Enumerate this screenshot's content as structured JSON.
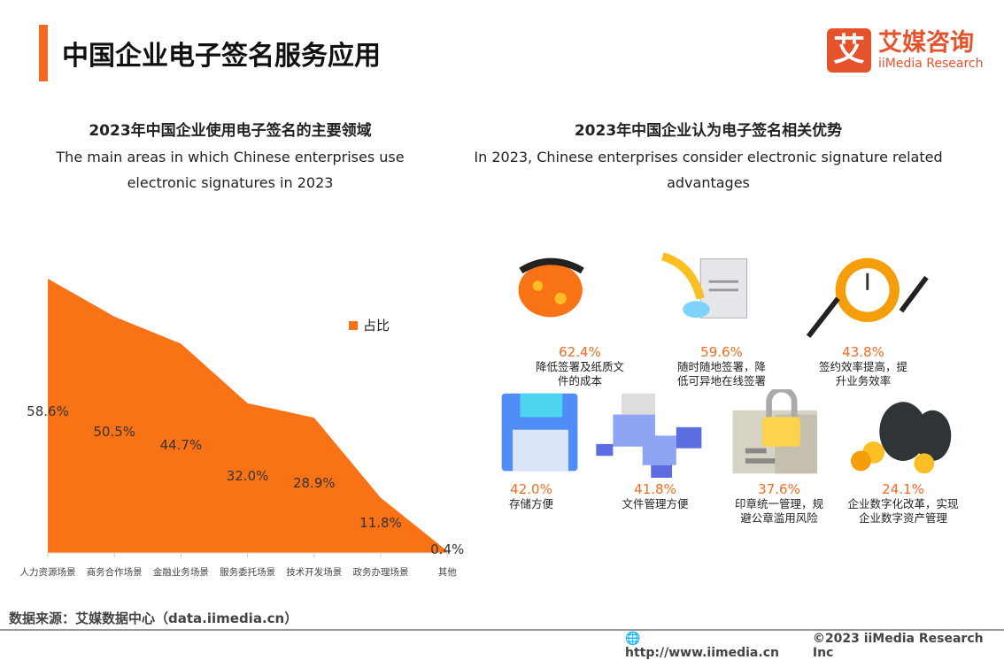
{
  "header": {
    "title": "中国企业电子签名服务应用",
    "logo_icon": "艾",
    "logo_cn": "艾媒咨询",
    "logo_en": "iiMedia Research"
  },
  "chart_data": {
    "type": "area",
    "title": "2023年中国企业使用电子签名的主要领域",
    "subtitle": "The main areas in which Chinese enterprises use electronic signatures in 2023",
    "categories": [
      "人力资源场景",
      "商务合作场景",
      "金融业务场景",
      "服务委托场景",
      "技术开发场景",
      "政务办理场景",
      "其他"
    ],
    "series": [
      {
        "name": "占比",
        "values": [
          58.6,
          50.5,
          44.7,
          32.0,
          28.9,
          11.8,
          0.4
        ],
        "labels": [
          "58.6%",
          "50.5%",
          "44.7%",
          "32.0%",
          "28.9%",
          "11.8%",
          "0.4%"
        ]
      }
    ],
    "color": "#f97316",
    "legend": "right",
    "grid": false
  },
  "advantages": {
    "title": "2023年中国企业认为电子签名相关优势",
    "subtitle": "In 2023, Chinese enterprises consider electronic signature related advantages",
    "items": [
      {
        "pct": "62.4%",
        "label": "降低签署及纸质文件的成本",
        "icon": "money-bag-icon"
      },
      {
        "pct": "59.6%",
        "label": "随时随地签署，降低可异地在线签署",
        "icon": "quill-document-icon"
      },
      {
        "pct": "43.8%",
        "label": "签约效率提高，提升业务效率",
        "icon": "gear-clock-icon"
      },
      {
        "pct": "42.0%",
        "label": "存储方便",
        "icon": "floppy-disk-icon"
      },
      {
        "pct": "41.8%",
        "label": "文件管理方便",
        "icon": "folders-icon"
      },
      {
        "pct": "37.6%",
        "label": "印章统一管理，规避公章滥用风险",
        "icon": "lock-folder-icon"
      },
      {
        "pct": "24.1%",
        "label": "企业数字化改革，实现企业数字资产管理",
        "icon": "money-bags-coins-icon"
      }
    ]
  },
  "footer": {
    "source": "数据来源：艾媒数据中心（data.iimedia.cn）",
    "url": "http://www.iimedia.cn",
    "copyright": "©2023  iiMedia Research  Inc"
  }
}
